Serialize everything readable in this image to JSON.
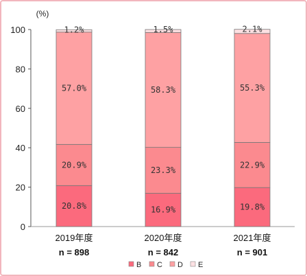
{
  "chart_data": {
    "type": "bar",
    "stacked": true,
    "unit_label": "(%)",
    "categories": [
      "2019年度",
      "2020年度",
      "2021年度"
    ],
    "sample_sizes": [
      "n = 898",
      "n = 842",
      "n = 901"
    ],
    "ylim": [
      0,
      100
    ],
    "yticks": [
      0,
      20,
      40,
      60,
      80,
      100
    ],
    "grid": false,
    "legend_position": "bottom",
    "series": [
      {
        "name": "B",
        "values": [
          20.8,
          16.9,
          19.8
        ],
        "labels": [
          "20.8%",
          "16.9%",
          "19.8%"
        ],
        "color": "#fb6a7d"
      },
      {
        "name": "C",
        "values": [
          20.9,
          23.3,
          22.9
        ],
        "labels": [
          "20.9%",
          "23.3%",
          "22.9%"
        ],
        "color": "#fb8a8f"
      },
      {
        "name": "D",
        "values": [
          57.0,
          58.3,
          55.3
        ],
        "labels": [
          "57.0%",
          "58.3%",
          "55.3%"
        ],
        "color": "#fea1a3"
      },
      {
        "name": "E",
        "values": [
          1.2,
          1.5,
          2.1
        ],
        "labels": [
          "1.2%",
          "1.5%",
          "2.1%"
        ],
        "color": "#fde1e3"
      }
    ]
  }
}
